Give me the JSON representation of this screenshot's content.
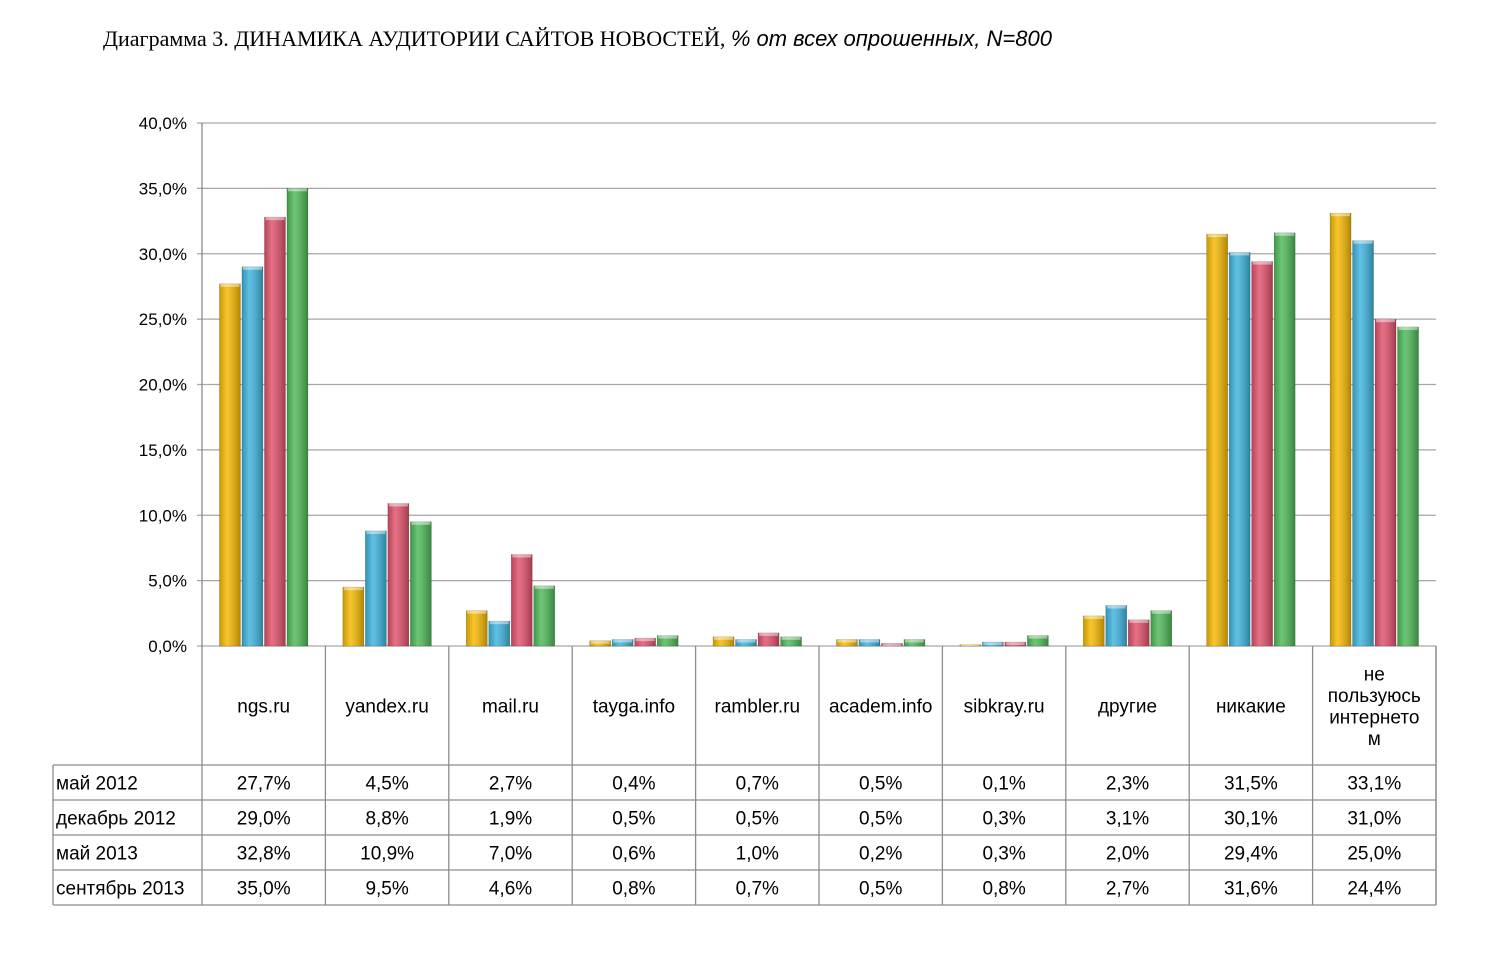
{
  "title": {
    "main": "Диаграмма  3. ДИНАМИКА АУДИТОРИИ САЙТОВ НОВОСТЕЙ,",
    "emphasis": "% от всех опрошенных, N=800"
  },
  "chart_data": {
    "type": "bar",
    "categories": [
      "ngs.ru",
      "yandex.ru",
      "mail.ru",
      "tayga.info",
      "rambler.ru",
      "academ.info",
      "sibkray.ru",
      "другие",
      "никакие",
      "не пользуюсь интернетом"
    ],
    "category_label_lines": [
      [
        "ngs.ru"
      ],
      [
        "yandex.ru"
      ],
      [
        "mail.ru"
      ],
      [
        "tayga.info"
      ],
      [
        "rambler.ru"
      ],
      [
        "academ.info"
      ],
      [
        "sibkray.ru"
      ],
      [
        "другие"
      ],
      [
        "никакие"
      ],
      [
        "не",
        "пользуюсь",
        "интернето",
        "м"
      ]
    ],
    "series": [
      {
        "name": "май 2012",
        "color": "#F5B800",
        "values": [
          27.7,
          4.5,
          2.7,
          0.4,
          0.7,
          0.5,
          0.1,
          2.3,
          31.5,
          33.1
        ],
        "labels": [
          "27,7%",
          "4,5%",
          "2,7%",
          "0,4%",
          "0,7%",
          "0,5%",
          "0,1%",
          "2,3%",
          "31,5%",
          "33,1%"
        ]
      },
      {
        "name": "декабрь 2012",
        "color": "#3DB3DD",
        "values": [
          29.0,
          8.8,
          1.9,
          0.5,
          0.5,
          0.5,
          0.3,
          3.1,
          30.1,
          31.0
        ],
        "labels": [
          "29,0%",
          "8,8%",
          "1,9%",
          "0,5%",
          "0,5%",
          "0,5%",
          "0,3%",
          "3,1%",
          "30,1%",
          "31,0%"
        ]
      },
      {
        "name": "май 2013",
        "color": "#E0506A",
        "values": [
          32.8,
          10.9,
          7.0,
          0.6,
          1.0,
          0.2,
          0.3,
          2.0,
          29.4,
          25.0
        ],
        "labels": [
          "32,8%",
          "10,9%",
          "7,0%",
          "0,6%",
          "1,0%",
          "0,2%",
          "0,3%",
          "2,0%",
          "29,4%",
          "25,0%"
        ]
      },
      {
        "name": "сентябрь 2013",
        "color": "#4DB857",
        "values": [
          35.0,
          9.5,
          4.6,
          0.8,
          0.7,
          0.5,
          0.8,
          2.7,
          31.6,
          24.4
        ],
        "labels": [
          "35,0%",
          "9,5%",
          "4,6%",
          "0,8%",
          "0,7%",
          "0,5%",
          "0,8%",
          "2,7%",
          "31,6%",
          "24,4%"
        ]
      }
    ],
    "y_ticks": [
      "0,0%",
      "5,0%",
      "10,0%",
      "15,0%",
      "20,0%",
      "25,0%",
      "30,0%",
      "35,0%",
      "40,0%"
    ],
    "ylim": [
      0,
      40
    ],
    "grid": true,
    "legend": "data-table"
  }
}
